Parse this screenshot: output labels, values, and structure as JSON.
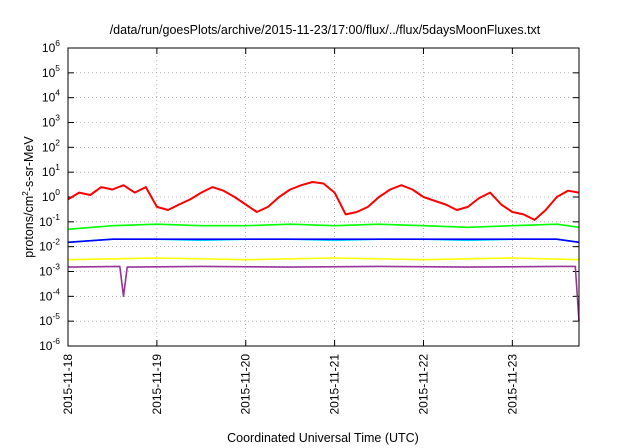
{
  "chart_data": {
    "type": "line",
    "title": "/data/run/goesPlots/archive/2015-11-23/17:00/flux/../flux/5daysMoonFluxes.txt",
    "xlabel": "Coordinated Universal Time (UTC)",
    "ylabel": {
      "prefix": "protons/cm",
      "sup": "2",
      "suffix": "-s-sr-MeV"
    },
    "yscale": "log",
    "ylim": [
      1e-06,
      1000000.0
    ],
    "ytick_exponents": [
      "-6",
      "-5",
      "-4",
      "-3",
      "-2",
      "-1",
      "0",
      "1",
      "2",
      "3",
      "4",
      "5",
      "6"
    ],
    "ytick_base": "10",
    "xlim": [
      "2015-11-18",
      "2015-11-23T18:00"
    ],
    "xtick_labels": [
      "2015-11-18",
      "2015-11-19",
      "2015-11-20",
      "2015-11-21",
      "2015-11-22",
      "2015-11-23"
    ],
    "grid": true,
    "series": [
      {
        "color": "#ff0000",
        "points": [
          [
            "2015-11-18T00:00",
            0.8
          ],
          [
            "2015-11-18T03:00",
            1.5
          ],
          [
            "2015-11-18T06:00",
            1.2
          ],
          [
            "2015-11-18T09:00",
            2.5
          ],
          [
            "2015-11-18T12:00",
            2.0
          ],
          [
            "2015-11-18T15:00",
            3.0
          ],
          [
            "2015-11-18T18:00",
            1.5
          ],
          [
            "2015-11-18T21:00",
            2.5
          ],
          [
            "2015-11-19T00:00",
            0.4
          ],
          [
            "2015-11-19T03:00",
            0.3
          ],
          [
            "2015-11-19T06:00",
            0.5
          ],
          [
            "2015-11-19T09:00",
            0.8
          ],
          [
            "2015-11-19T12:00",
            1.5
          ],
          [
            "2015-11-19T15:00",
            2.5
          ],
          [
            "2015-11-19T18:00",
            1.8
          ],
          [
            "2015-11-19T21:00",
            1.0
          ],
          [
            "2015-11-20T00:00",
            0.5
          ],
          [
            "2015-11-20T03:00",
            0.25
          ],
          [
            "2015-11-20T06:00",
            0.4
          ],
          [
            "2015-11-20T09:00",
            1.0
          ],
          [
            "2015-11-20T12:00",
            2.0
          ],
          [
            "2015-11-20T15:00",
            3.0
          ],
          [
            "2015-11-20T18:00",
            4.0
          ],
          [
            "2015-11-20T21:00",
            3.5
          ],
          [
            "2015-11-21T00:00",
            1.5
          ],
          [
            "2015-11-21T03:00",
            0.2
          ],
          [
            "2015-11-21T06:00",
            0.25
          ],
          [
            "2015-11-21T09:00",
            0.4
          ],
          [
            "2015-11-21T12:00",
            1.0
          ],
          [
            "2015-11-21T15:00",
            2.0
          ],
          [
            "2015-11-21T18:00",
            3.0
          ],
          [
            "2015-11-21T21:00",
            2.0
          ],
          [
            "2015-11-22T00:00",
            1.0
          ],
          [
            "2015-11-22T03:00",
            0.7
          ],
          [
            "2015-11-22T06:00",
            0.5
          ],
          [
            "2015-11-22T09:00",
            0.3
          ],
          [
            "2015-11-22T12:00",
            0.4
          ],
          [
            "2015-11-22T15:00",
            0.9
          ],
          [
            "2015-11-22T18:00",
            1.5
          ],
          [
            "2015-11-22T21:00",
            0.5
          ],
          [
            "2015-11-23T00:00",
            0.25
          ],
          [
            "2015-11-23T03:00",
            0.2
          ],
          [
            "2015-11-23T06:00",
            0.12
          ],
          [
            "2015-11-23T09:00",
            0.3
          ],
          [
            "2015-11-23T12:00",
            1.0
          ],
          [
            "2015-11-23T15:00",
            1.8
          ],
          [
            "2015-11-23T18:00",
            1.5
          ]
        ]
      },
      {
        "color": "#00ff00",
        "points": [
          [
            "2015-11-18T00:00",
            0.05
          ],
          [
            "2015-11-18T12:00",
            0.07
          ],
          [
            "2015-11-19T00:00",
            0.08
          ],
          [
            "2015-11-19T12:00",
            0.07
          ],
          [
            "2015-11-20T00:00",
            0.07
          ],
          [
            "2015-11-20T12:00",
            0.08
          ],
          [
            "2015-11-21T00:00",
            0.07
          ],
          [
            "2015-11-21T12:00",
            0.08
          ],
          [
            "2015-11-22T00:00",
            0.07
          ],
          [
            "2015-11-22T12:00",
            0.06
          ],
          [
            "2015-11-23T00:00",
            0.07
          ],
          [
            "2015-11-23T12:00",
            0.08
          ],
          [
            "2015-11-23T18:00",
            0.06
          ]
        ]
      },
      {
        "color": "#00ccff",
        "points": [
          [
            "2015-11-18T00:00",
            0.015
          ],
          [
            "2015-11-18T12:00",
            0.02
          ],
          [
            "2015-11-19T00:00",
            0.02
          ],
          [
            "2015-11-19T12:00",
            0.018
          ],
          [
            "2015-11-20T00:00",
            0.02
          ],
          [
            "2015-11-20T12:00",
            0.02
          ],
          [
            "2015-11-21T00:00",
            0.018
          ],
          [
            "2015-11-21T12:00",
            0.02
          ],
          [
            "2015-11-22T00:00",
            0.02
          ],
          [
            "2015-11-22T12:00",
            0.018
          ],
          [
            "2015-11-23T00:00",
            0.02
          ],
          [
            "2015-11-23T12:00",
            0.02
          ],
          [
            "2015-11-23T18:00",
            0.015
          ]
        ]
      },
      {
        "color": "#0000ff",
        "points": [
          [
            "2015-11-18T00:00",
            0.015
          ],
          [
            "2015-11-18T12:00",
            0.02
          ],
          [
            "2015-11-19T00:00",
            0.02
          ],
          [
            "2015-11-19T12:00",
            0.02
          ],
          [
            "2015-11-20T00:00",
            0.02
          ],
          [
            "2015-11-20T12:00",
            0.02
          ],
          [
            "2015-11-21T00:00",
            0.02
          ],
          [
            "2015-11-21T12:00",
            0.02
          ],
          [
            "2015-11-22T00:00",
            0.02
          ],
          [
            "2015-11-22T12:00",
            0.02
          ],
          [
            "2015-11-23T00:00",
            0.02
          ],
          [
            "2015-11-23T12:00",
            0.02
          ],
          [
            "2015-11-23T18:00",
            0.015
          ]
        ]
      },
      {
        "color": "#ffff00",
        "points": [
          [
            "2015-11-18T00:00",
            0.003
          ],
          [
            "2015-11-19T00:00",
            0.0035
          ],
          [
            "2015-11-20T00:00",
            0.003
          ],
          [
            "2015-11-21T00:00",
            0.0035
          ],
          [
            "2015-11-22T00:00",
            0.003
          ],
          [
            "2015-11-23T00:00",
            0.0035
          ],
          [
            "2015-11-23T18:00",
            0.003
          ]
        ]
      },
      {
        "color": "#993399",
        "points": [
          [
            "2015-11-18T00:00",
            0.0015
          ],
          [
            "2015-11-18T14:00",
            0.0016
          ],
          [
            "2015-11-18T15:00",
            0.0001
          ],
          [
            "2015-11-18T16:00",
            0.0015
          ],
          [
            "2015-11-19T12:00",
            0.0016
          ],
          [
            "2015-11-20T12:00",
            0.0015
          ],
          [
            "2015-11-21T12:00",
            0.0016
          ],
          [
            "2015-11-22T12:00",
            0.0015
          ],
          [
            "2015-11-23T12:00",
            0.0016
          ],
          [
            "2015-11-23T17:00",
            0.0016
          ],
          [
            "2015-11-23T18:00",
            1e-05
          ]
        ]
      }
    ]
  }
}
